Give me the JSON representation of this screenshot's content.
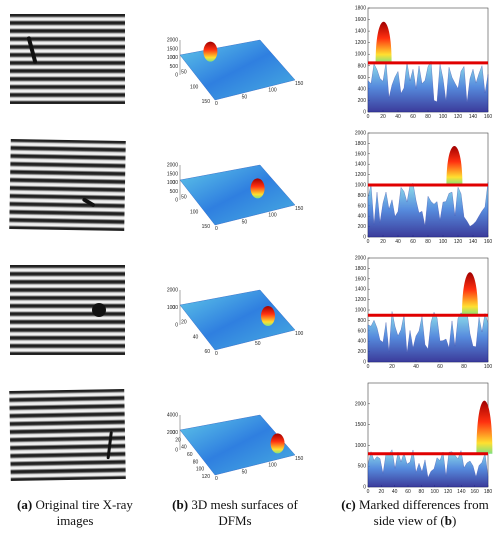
{
  "captions": [
    {
      "label": "(a)",
      "text": "Original tire X-ray images"
    },
    {
      "label": "(b)",
      "text": "3D mesh surfaces of DFMs"
    },
    {
      "label": "(c)",
      "text": "Marked differences from side view of (",
      "suffix_label": "b",
      "suffix_end": ")"
    }
  ],
  "panels": [
    {
      "b": {
        "zlim": [
          0,
          2000
        ],
        "zticks": [
          0,
          500,
          1000,
          1500,
          2000
        ],
        "xticks": [
          0,
          50,
          100,
          150
        ],
        "yticks": [
          0,
          50,
          100,
          150
        ]
      },
      "c": {
        "ylim": [
          0,
          1800
        ],
        "yticks": [
          0,
          200,
          400,
          600,
          800,
          1000,
          1200,
          1400,
          1600,
          1800
        ],
        "xlim": [
          0,
          160
        ],
        "xticks": [
          0,
          20,
          40,
          60,
          80,
          100,
          120,
          140,
          160
        ],
        "threshold": 850
      }
    },
    {
      "b": {
        "zlim": [
          0,
          2000
        ],
        "zticks": [
          0,
          500,
          1000,
          1500,
          2000
        ],
        "xticks": [
          0,
          50,
          100,
          150
        ],
        "yticks": [
          0,
          50,
          100,
          150
        ]
      },
      "c": {
        "ylim": [
          0,
          2000
        ],
        "yticks": [
          0,
          200,
          400,
          600,
          800,
          1000,
          1200,
          1400,
          1600,
          1800,
          2000
        ],
        "xlim": [
          0,
          160
        ],
        "xticks": [
          0,
          20,
          40,
          60,
          80,
          100,
          120,
          140,
          160
        ],
        "threshold": 1000
      }
    },
    {
      "b": {
        "zlim": [
          0,
          2000
        ],
        "zticks": [
          0,
          1000,
          2000
        ],
        "xticks": [
          0,
          50,
          100
        ],
        "yticks": [
          0,
          20,
          40,
          60
        ]
      },
      "c": {
        "ylim": [
          0,
          2000
        ],
        "yticks": [
          0,
          200,
          400,
          600,
          800,
          1000,
          1200,
          1400,
          1600,
          1800,
          2000
        ],
        "xlim": [
          0,
          100
        ],
        "xticks": [
          0,
          20,
          40,
          60,
          80,
          100
        ],
        "threshold": 900
      }
    },
    {
      "b": {
        "zlim": [
          0,
          4000
        ],
        "zticks": [
          0,
          2000,
          4000
        ],
        "xticks": [
          0,
          50,
          100,
          150
        ],
        "yticks": [
          0,
          20,
          40,
          60,
          80,
          100,
          120
        ]
      },
      "c": {
        "ylim": [
          0,
          2500
        ],
        "yticks": [
          0,
          500,
          1000,
          1500,
          2000
        ],
        "xlim": [
          0,
          180
        ],
        "xticks": [
          0,
          20,
          40,
          60,
          80,
          100,
          120,
          140,
          160,
          180
        ],
        "threshold": 800
      }
    }
  ]
}
